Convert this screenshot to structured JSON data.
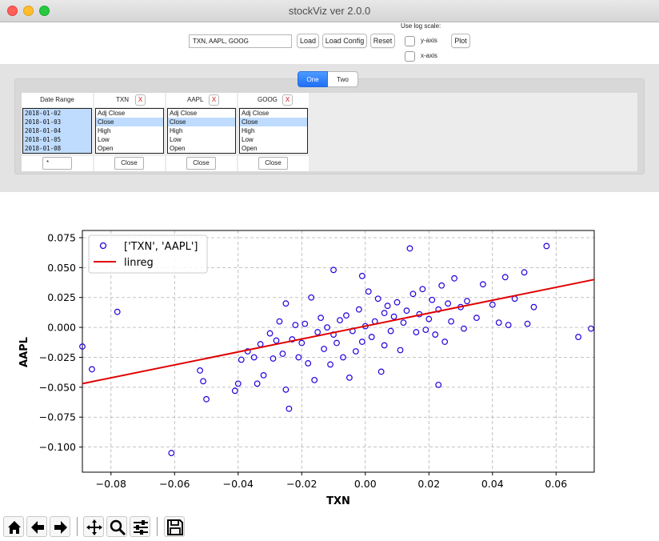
{
  "window": {
    "title": "stockViz ver 2.0.0"
  },
  "toolbar": {
    "tickers_value": "TXN, AAPL, GOOG",
    "load_label": "Load",
    "load_config_label": "Load Config",
    "reset_label": "Reset",
    "log_scale_label": "Use log scale:",
    "yaxis_label": "y-axis",
    "xaxis_label": "x-axis",
    "plot_label": "Plot"
  },
  "tabs": [
    {
      "label": "One"
    },
    {
      "label": "Two"
    }
  ],
  "date_range": {
    "header": "Date Range",
    "dates": [
      "2018-01-02",
      "2018-01-03",
      "2018-01-04",
      "2018-01-05",
      "2018-01-08"
    ],
    "filter_value": "*"
  },
  "tickers": [
    {
      "name": "TXN",
      "remove": "X",
      "options": [
        "Adj Close",
        "Close",
        "High",
        "Low",
        "Open"
      ],
      "selected": "Close",
      "field": "Close"
    },
    {
      "name": "AAPL",
      "remove": "X",
      "options": [
        "Adj Close",
        "Close",
        "High",
        "Low",
        "Open"
      ],
      "selected": "Close",
      "field": "Close"
    },
    {
      "name": "GOOG",
      "remove": "X",
      "options": [
        "Adj Close",
        "Close",
        "High",
        "Low",
        "Open"
      ],
      "selected": "Close",
      "field": "Close"
    }
  ],
  "colors": {
    "accent": "#1f6ef7",
    "point": "#2200dd",
    "regression": "#e00000",
    "selected": "#bfdcff",
    "remove": "#d01010"
  },
  "toolbar_icons": [
    "home-icon",
    "back-arrow-icon",
    "forward-arrow-icon",
    "pan-icon",
    "zoom-icon",
    "configure-subplots-icon",
    "save-icon"
  ],
  "chart_data": {
    "type": "scatter",
    "xlabel": "TXN",
    "ylabel": "AAPL",
    "xlim": [
      -0.089,
      0.072
    ],
    "ylim": [
      -0.121,
      0.081
    ],
    "xticks": [
      -0.08,
      -0.06,
      -0.04,
      -0.02,
      0.0,
      0.02,
      0.04,
      0.06
    ],
    "xtick_labels": [
      "−0.08",
      "−0.06",
      "−0.04",
      "−0.02",
      "0.00",
      "0.02",
      "0.04",
      "0.06"
    ],
    "yticks": [
      0.075,
      0.05,
      0.025,
      0.0,
      -0.025,
      -0.05,
      -0.075,
      -0.1
    ],
    "ytick_labels": [
      "0.075",
      "0.050",
      "0.025",
      "0.000",
      "−0.025",
      "−0.050",
      "−0.075",
      "−0.100"
    ],
    "grid": true,
    "legend_position": "top-left",
    "series": [
      {
        "name": "['TXN', 'AAPL']",
        "kind": "scatter",
        "points": [
          [
            -0.089,
            -0.016
          ],
          [
            -0.086,
            -0.035
          ],
          [
            -0.078,
            0.013
          ],
          [
            -0.061,
            -0.105
          ],
          [
            -0.052,
            -0.036
          ],
          [
            -0.051,
            -0.045
          ],
          [
            -0.05,
            -0.06
          ],
          [
            -0.041,
            -0.053
          ],
          [
            -0.04,
            -0.047
          ],
          [
            -0.039,
            -0.027
          ],
          [
            -0.037,
            -0.02
          ],
          [
            -0.035,
            -0.025
          ],
          [
            -0.034,
            -0.047
          ],
          [
            -0.033,
            -0.014
          ],
          [
            -0.032,
            -0.04
          ],
          [
            -0.03,
            -0.005
          ],
          [
            -0.029,
            -0.026
          ],
          [
            -0.028,
            -0.011
          ],
          [
            -0.027,
            0.005
          ],
          [
            -0.026,
            -0.022
          ],
          [
            -0.025,
            0.02
          ],
          [
            -0.025,
            -0.052
          ],
          [
            -0.024,
            -0.068
          ],
          [
            -0.023,
            -0.01
          ],
          [
            -0.022,
            0.002
          ],
          [
            -0.021,
            -0.025
          ],
          [
            -0.02,
            -0.013
          ],
          [
            -0.019,
            0.003
          ],
          [
            -0.018,
            -0.03
          ],
          [
            -0.017,
            0.025
          ],
          [
            -0.016,
            -0.044
          ],
          [
            -0.015,
            -0.004
          ],
          [
            -0.014,
            0.008
          ],
          [
            -0.013,
            -0.018
          ],
          [
            -0.012,
            0.0
          ],
          [
            -0.011,
            -0.031
          ],
          [
            -0.01,
            0.048
          ],
          [
            -0.01,
            -0.006
          ],
          [
            -0.009,
            -0.013
          ],
          [
            -0.008,
            0.006
          ],
          [
            -0.007,
            -0.025
          ],
          [
            -0.006,
            0.01
          ],
          [
            -0.005,
            -0.042
          ],
          [
            -0.004,
            -0.003
          ],
          [
            -0.003,
            -0.02
          ],
          [
            -0.002,
            0.015
          ],
          [
            -0.001,
            0.043
          ],
          [
            -0.001,
            -0.012
          ],
          [
            0.0,
            0.001
          ],
          [
            0.001,
            0.03
          ],
          [
            0.002,
            -0.008
          ],
          [
            0.003,
            0.005
          ],
          [
            0.004,
            0.024
          ],
          [
            0.005,
            -0.037
          ],
          [
            0.006,
            0.012
          ],
          [
            0.006,
            -0.015
          ],
          [
            0.007,
            0.018
          ],
          [
            0.008,
            -0.003
          ],
          [
            0.009,
            0.009
          ],
          [
            0.01,
            0.021
          ],
          [
            0.011,
            -0.019
          ],
          [
            0.012,
            0.004
          ],
          [
            0.013,
            0.014
          ],
          [
            0.014,
            0.066
          ],
          [
            0.015,
            0.028
          ],
          [
            0.016,
            -0.004
          ],
          [
            0.017,
            0.011
          ],
          [
            0.018,
            0.032
          ],
          [
            0.019,
            -0.002
          ],
          [
            0.02,
            0.007
          ],
          [
            0.021,
            0.023
          ],
          [
            0.022,
            -0.006
          ],
          [
            0.023,
            0.015
          ],
          [
            0.023,
            -0.048
          ],
          [
            0.024,
            0.035
          ],
          [
            0.025,
            -0.012
          ],
          [
            0.026,
            0.02
          ],
          [
            0.027,
            0.005
          ],
          [
            0.028,
            0.041
          ],
          [
            0.03,
            0.017
          ],
          [
            0.031,
            -0.001
          ],
          [
            0.032,
            0.022
          ],
          [
            0.035,
            0.008
          ],
          [
            0.037,
            0.036
          ],
          [
            0.04,
            0.019
          ],
          [
            0.042,
            0.004
          ],
          [
            0.044,
            0.042
          ],
          [
            0.045,
            0.002
          ],
          [
            0.047,
            0.024
          ],
          [
            0.05,
            0.046
          ],
          [
            0.051,
            0.003
          ],
          [
            0.053,
            0.017
          ],
          [
            0.057,
            0.068
          ],
          [
            0.067,
            -0.008
          ],
          [
            0.071,
            -0.001
          ]
        ]
      },
      {
        "name": "linreg",
        "kind": "line",
        "points": [
          [
            -0.089,
            -0.047
          ],
          [
            0.072,
            0.04
          ]
        ]
      }
    ]
  }
}
